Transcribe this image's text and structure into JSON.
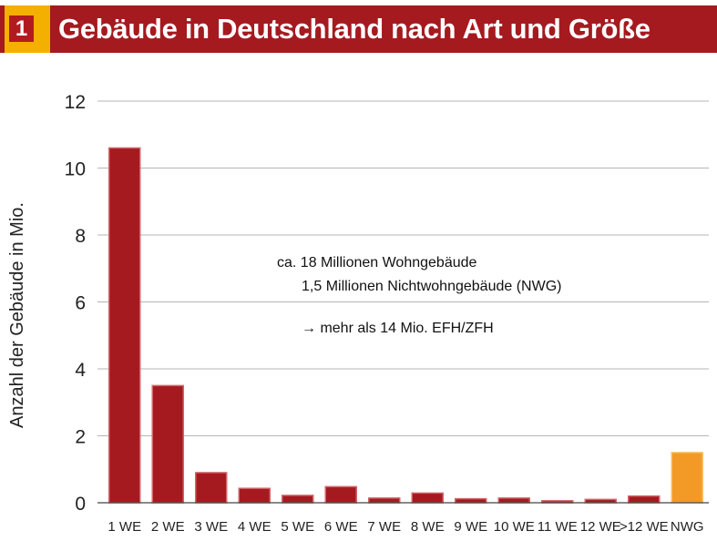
{
  "header": {
    "number": "1",
    "title": "Gebäude in Deutschland nach Art und Größe"
  },
  "colors": {
    "header_bg": "#a51a1f",
    "badge_bg": "#f4b000",
    "bar_main": "#a51a1f",
    "bar_nwg": "#f39a26"
  },
  "chart_data": {
    "type": "bar",
    "title": "Gebäude in Deutschland nach Art und Größe",
    "ylabel": "Anzahl der Gebäude in Mio.",
    "xlabel": "",
    "ylim": [
      0,
      12
    ],
    "yticks": [
      0,
      2,
      4,
      6,
      8,
      10,
      12
    ],
    "grid": true,
    "categories": [
      "1 WE",
      "2 WE",
      "3 WE",
      "4 WE",
      "5 WE",
      "6 WE",
      "7 WE",
      "8 WE",
      "9 WE",
      "10 WE",
      "11 WE",
      "12 WE",
      ">12 WE",
      "NWG"
    ],
    "values": [
      10.6,
      3.5,
      0.9,
      0.43,
      0.22,
      0.48,
      0.14,
      0.29,
      0.12,
      0.14,
      0.06,
      0.1,
      0.2,
      1.5
    ],
    "highlight_category": "NWG",
    "annotations": [
      "ca. 18 Millionen Wohngebäude",
      "1,5 Millionen Nichtwohngebäude (NWG)",
      "→ mehr als 14 Mio. EFH/ZFH"
    ]
  }
}
